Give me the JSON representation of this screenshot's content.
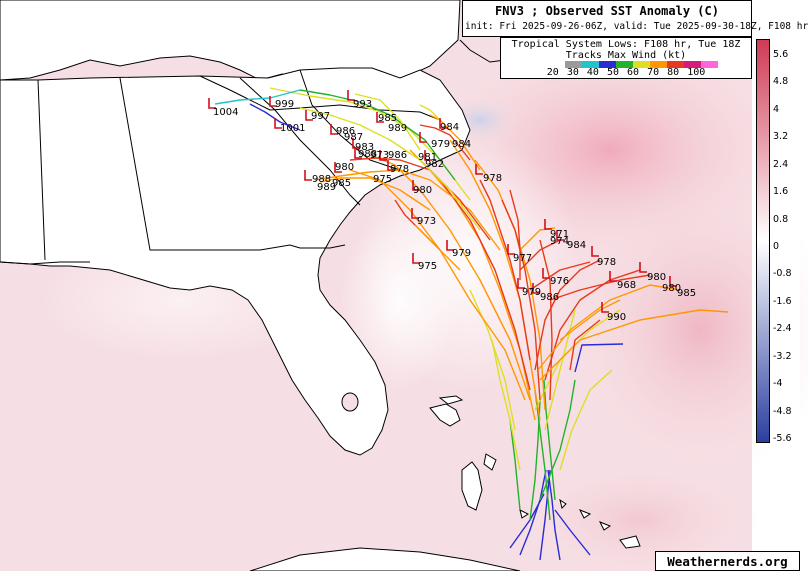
{
  "header": {
    "title": "FNV3 ; Observed SST Anomaly (C)",
    "subtitle": "init: Fri 2025-09-26-06Z, valid: Tue 2025-09-30-18Z, F108 hr"
  },
  "legend": {
    "line1": "Tropical System Lows: F108 hr, Tue 18Z",
    "line2": "Tracks Max Wind (kt)",
    "categories": [
      "20",
      "30",
      "40",
      "50",
      "60",
      "70",
      "80",
      "100"
    ],
    "colors": [
      "#9a9a9a",
      "#22c4cc",
      "#2b2bd6",
      "#22b22b",
      "#dede22",
      "#ff9800",
      "#e8391c",
      "#d81b7a",
      "#ff66dd"
    ]
  },
  "colorbar": {
    "labels": [
      "5.6",
      "4.8",
      "4",
      "3.2",
      "2.4",
      "1.6",
      "0.8",
      "0",
      "-0.8",
      "-1.6",
      "-2.4",
      "-3.2",
      "-4",
      "-4.8",
      "-5.6"
    ],
    "top_color": "#cf3b55",
    "mid_color": "#ffffff",
    "bottom_color": "#2b3fa0"
  },
  "credit": "Weathernerds.org",
  "lows": [
    {
      "id": "low-1004",
      "label": "1004"
    },
    {
      "id": "low-999",
      "label": "999"
    },
    {
      "id": "low-997",
      "label": "997"
    },
    {
      "id": "low-1001",
      "label": "1001"
    },
    {
      "id": "low-993",
      "label": "993"
    },
    {
      "id": "low-985",
      "label": "985"
    },
    {
      "id": "low-989",
      "label": "989"
    },
    {
      "id": "low-986a",
      "label": "986"
    },
    {
      "id": "low-987",
      "label": "987"
    },
    {
      "id": "low-984a",
      "label": "984"
    },
    {
      "id": "low-983",
      "label": "983"
    },
    {
      "id": "low-979",
      "label": "979"
    },
    {
      "id": "low-984b",
      "label": "984"
    },
    {
      "id": "low-988",
      "label": "988"
    },
    {
      "id": "low-986b",
      "label": "986"
    },
    {
      "id": "low-973a",
      "label": "973"
    },
    {
      "id": "low-981",
      "label": "981"
    },
    {
      "id": "low-980a",
      "label": "980"
    },
    {
      "id": "low-975a",
      "label": "975"
    },
    {
      "id": "low-982",
      "label": "982"
    },
    {
      "id": "low-978a",
      "label": "978"
    },
    {
      "id": "low-988b",
      "label": "988"
    },
    {
      "id": "low-985b",
      "label": "985"
    },
    {
      "id": "low-989b",
      "label": "989"
    },
    {
      "id": "low-980b",
      "label": "980"
    },
    {
      "id": "low-978b",
      "label": "978"
    },
    {
      "id": "low-973b",
      "label": "973"
    },
    {
      "id": "low-979b",
      "label": "979"
    },
    {
      "id": "low-975b",
      "label": "975"
    },
    {
      "id": "low-971",
      "label": "971"
    },
    {
      "id": "low-974",
      "label": "974"
    },
    {
      "id": "low-984c",
      "label": "984"
    },
    {
      "id": "low-977",
      "label": "977"
    },
    {
      "id": "low-978c",
      "label": "978"
    },
    {
      "id": "low-976",
      "label": "976"
    },
    {
      "id": "low-980c",
      "label": "980"
    },
    {
      "id": "low-968",
      "label": "968"
    },
    {
      "id": "low-980d",
      "label": "980"
    },
    {
      "id": "low-985c",
      "label": "985"
    },
    {
      "id": "low-979c",
      "label": "979"
    },
    {
      "id": "low-986c",
      "label": "986"
    },
    {
      "id": "low-990",
      "label": "990"
    }
  ]
}
